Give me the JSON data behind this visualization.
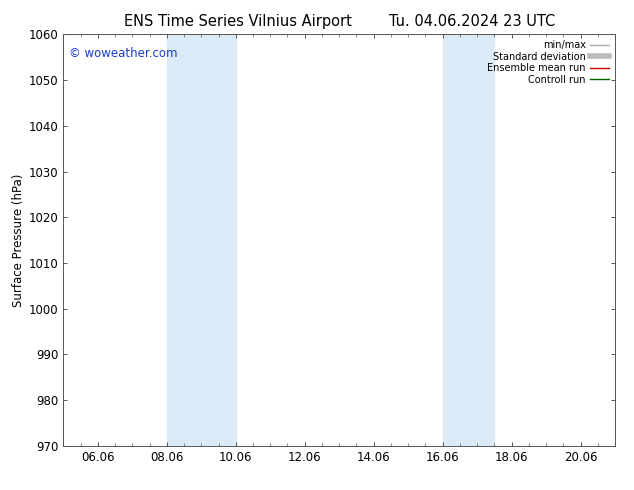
{
  "title_left": "ENS Time Series Vilnius Airport",
  "title_right": "Tu. 04.06.2024 23 UTC",
  "ylabel": "Surface Pressure (hPa)",
  "ylim": [
    970,
    1060
  ],
  "yticks": [
    970,
    980,
    990,
    1000,
    1010,
    1020,
    1030,
    1040,
    1050,
    1060
  ],
  "xtick_labels": [
    "06.06",
    "08.06",
    "10.06",
    "12.06",
    "14.06",
    "16.06",
    "18.06",
    "20.06"
  ],
  "xtick_positions": [
    6,
    8,
    10,
    12,
    14,
    16,
    18,
    20
  ],
  "xlim": [
    5,
    21
  ],
  "shaded_regions": [
    {
      "xmin": 8.0,
      "xmax": 10.0
    },
    {
      "xmin": 16.0,
      "xmax": 17.5
    }
  ],
  "shaded_color": "#daeaf6",
  "background_color": "#ffffff",
  "watermark_text": "© woweather.com",
  "watermark_color": "#1a3ecc",
  "legend_items": [
    {
      "label": "min/max",
      "color": "#aaaaaa",
      "lw": 1
    },
    {
      "label": "Standard deviation",
      "color": "#bbbbbb",
      "lw": 4
    },
    {
      "label": "Ensemble mean run",
      "color": "#cc0000",
      "lw": 1
    },
    {
      "label": "Controll run",
      "color": "#006600",
      "lw": 1
    }
  ],
  "tick_label_fontsize": 8.5,
  "title_fontsize": 10.5,
  "ylabel_fontsize": 8.5
}
